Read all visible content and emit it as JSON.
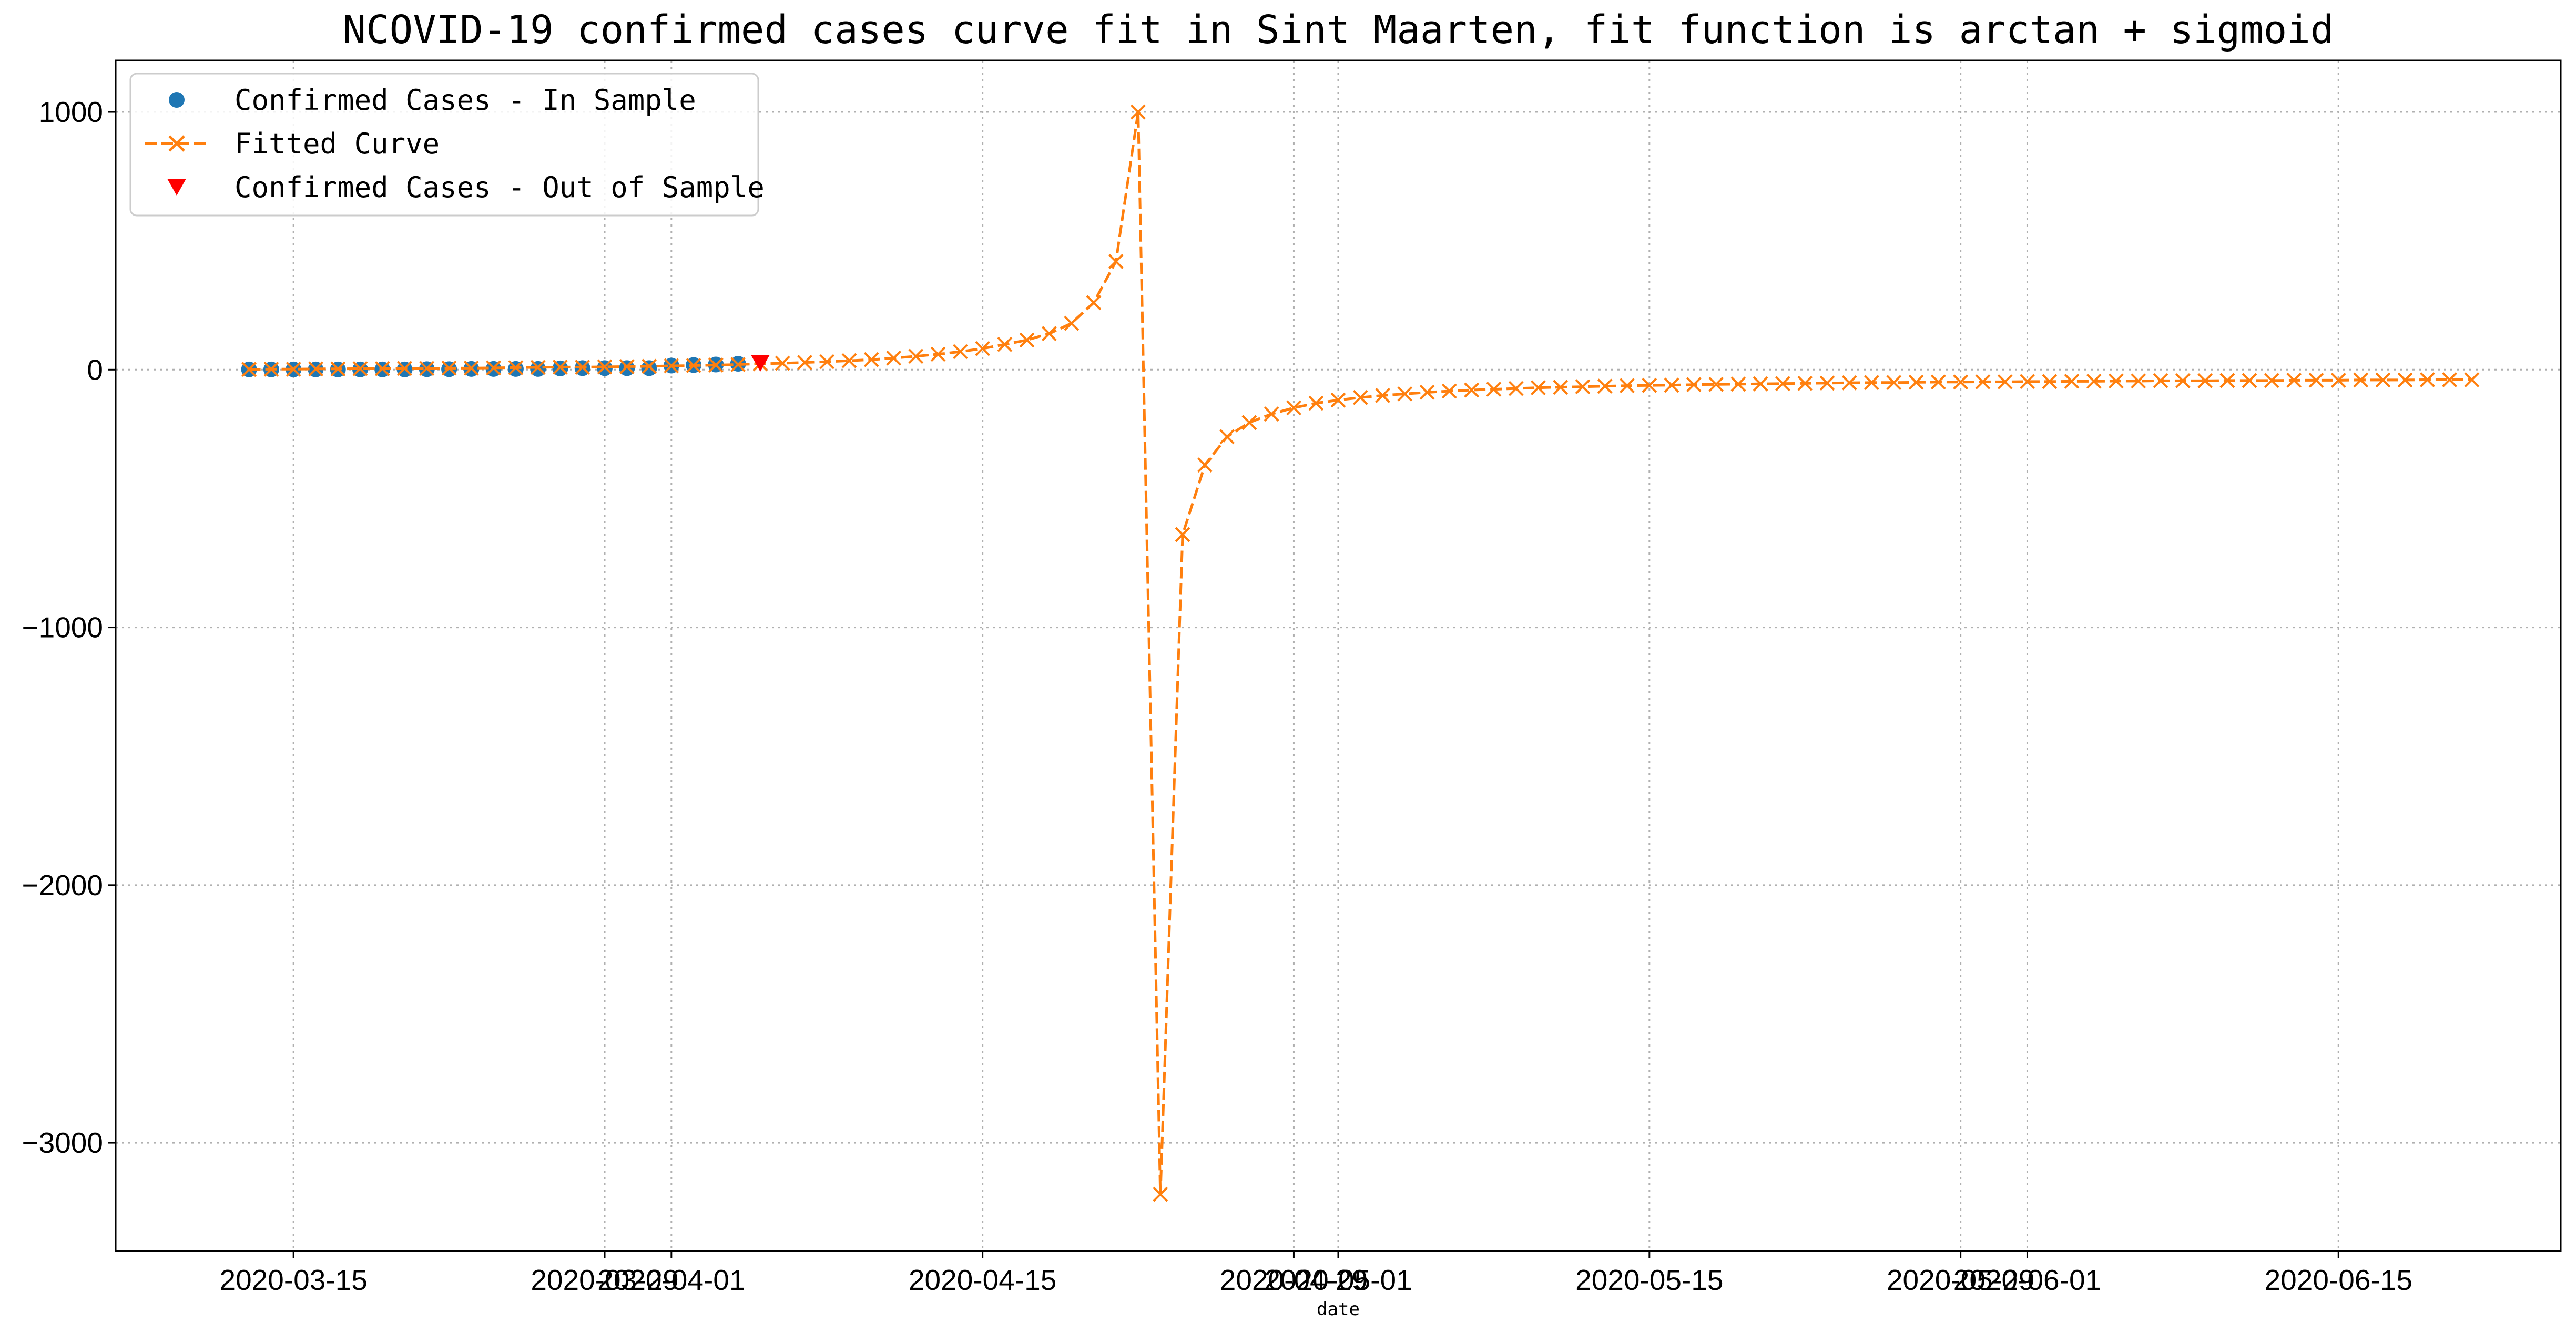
{
  "chart_data": {
    "type": "line",
    "title": "NCOVID-19 confirmed cases curve fit in Sint Maarten, fit function is arctan + sigmoid",
    "xlabel": "date",
    "ylabel": "",
    "xlim": [
      "2020-03-07",
      "2020-06-25"
    ],
    "ylim": [
      -3420,
      1200
    ],
    "grid": true,
    "legend_position": "top-left",
    "xticks": [
      "2020-03-15",
      "2020-03-29",
      "2020-04-01",
      "2020-04-15",
      "2020-04-29",
      "2020-05-01",
      "2020-05-15",
      "2020-05-29",
      "2020-06-01",
      "2020-06-15"
    ],
    "yticks": [
      1000,
      0,
      -1000,
      -2000,
      -3000
    ],
    "ytick_labels": [
      "1000",
      "0",
      "−1000",
      "−2000",
      "−3000"
    ],
    "colors": {
      "in_sample": "#1f77b4",
      "fitted": "#ff7f0e",
      "out_of_sample": "#ff0000"
    },
    "series": [
      {
        "name": "Confirmed Cases - In Sample",
        "marker": "circle",
        "x": [
          "2020-03-13",
          "2020-03-14",
          "2020-03-15",
          "2020-03-16",
          "2020-03-17",
          "2020-03-18",
          "2020-03-19",
          "2020-03-20",
          "2020-03-21",
          "2020-03-22",
          "2020-03-23",
          "2020-03-24",
          "2020-03-25",
          "2020-03-26",
          "2020-03-27",
          "2020-03-28",
          "2020-03-29",
          "2020-03-30",
          "2020-03-31",
          "2020-04-01",
          "2020-04-02",
          "2020-04-03",
          "2020-04-04"
        ],
        "y": [
          1,
          1,
          1,
          1,
          1,
          1,
          1,
          1,
          2,
          2,
          3,
          3,
          3,
          3,
          5,
          6,
          6,
          6,
          6,
          16,
          18,
          20,
          23
        ]
      },
      {
        "name": "Fitted Curve",
        "marker": "x",
        "x_start": "2020-03-13",
        "step_days": 1,
        "y": [
          1,
          2,
          2,
          3,
          3,
          4,
          4,
          5,
          5,
          6,
          6,
          7,
          8,
          9,
          10,
          10,
          11,
          12,
          13,
          15,
          16,
          18,
          20,
          23,
          25,
          28,
          31,
          35,
          39,
          45,
          52,
          60,
          70,
          82,
          98,
          115,
          140,
          180,
          260,
          420,
          1000,
          -3200,
          -640,
          -370,
          -260,
          -205,
          -172,
          -148,
          -130,
          -118,
          -108,
          -100,
          -94,
          -88,
          -83,
          -79,
          -76,
          -73,
          -70,
          -68,
          -66,
          -64,
          -62,
          -61,
          -60,
          -58,
          -57,
          -56,
          -55,
          -54,
          -53,
          -52,
          -51,
          -50,
          -50,
          -49,
          -48,
          -48,
          -47,
          -47,
          -46,
          -46,
          -45,
          -45,
          -44,
          -44,
          -43,
          -43,
          -43,
          -42,
          -42,
          -42,
          -41,
          -41,
          -41,
          -40,
          -40,
          -40,
          -39,
          -39,
          -39
        ]
      },
      {
        "name": "Confirmed Cases - Out of Sample",
        "marker": "triangle-down",
        "x": [
          "2020-04-05"
        ],
        "y": [
          25
        ]
      }
    ]
  }
}
